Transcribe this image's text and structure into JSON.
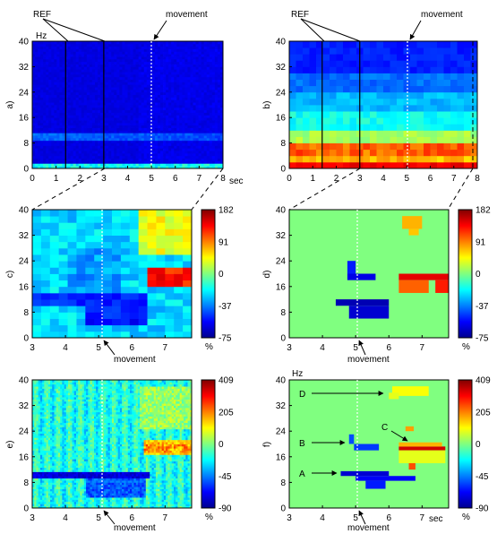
{
  "chart_data": [
    {
      "id": "a",
      "type": "heatmap",
      "panel_label": "a)",
      "unit_label": "Hz",
      "x_unit": "sec",
      "xlim": [
        0,
        8
      ],
      "ylim": [
        0,
        40
      ],
      "x_ticks": [
        "0",
        "1",
        "2",
        "3",
        "4",
        "5",
        "6",
        "7",
        "8"
      ],
      "y_ticks": [
        "0",
        "8",
        "16",
        "24",
        "32",
        "40"
      ],
      "ref_lines_sec": [
        1.4,
        3.0
      ],
      "movement_sec": 5.0,
      "annotations": {
        "ref": "REF",
        "movement": "movement"
      }
    },
    {
      "id": "b",
      "type": "heatmap",
      "panel_label": "b)",
      "xlim": [
        0,
        8
      ],
      "ylim": [
        0,
        40
      ],
      "x_ticks": [
        "0",
        "1",
        "2",
        "3",
        "4",
        "5",
        "6",
        "7",
        "8"
      ],
      "y_ticks": [
        "0",
        "8",
        "16",
        "24",
        "32",
        "40"
      ],
      "ref_lines_sec": [
        1.4,
        3.0
      ],
      "movement_sec": 5.0,
      "annotations": {
        "ref": "REF",
        "movement": "movement"
      }
    },
    {
      "id": "c",
      "type": "heatmap",
      "panel_label": "c)",
      "xlim": [
        3,
        7.8
      ],
      "ylim": [
        0,
        40
      ],
      "x_ticks": [
        "3",
        "4",
        "5",
        "6",
        "7"
      ],
      "y_ticks": [
        "0",
        "8",
        "16",
        "24",
        "32",
        "40"
      ],
      "colorbar": {
        "ticks": [
          "182",
          "91",
          "0",
          "-37",
          "-75"
        ],
        "unit": "%"
      },
      "movement_sec": 5.0,
      "annotations": {
        "movement": "movement"
      }
    },
    {
      "id": "d",
      "type": "heatmap",
      "panel_label": "d)",
      "xlim": [
        3,
        7.8
      ],
      "ylim": [
        0,
        40
      ],
      "x_ticks": [
        "3",
        "4",
        "5",
        "6",
        "7"
      ],
      "y_ticks": [
        "0",
        "8",
        "16",
        "24",
        "32",
        "40"
      ],
      "colorbar": {
        "ticks": [
          "182",
          "91",
          "0",
          "-37",
          "-75"
        ],
        "unit": "%"
      },
      "movement_sec": 5.0,
      "annotations": {
        "movement": "movement"
      }
    },
    {
      "id": "e",
      "type": "heatmap",
      "panel_label": "e)",
      "xlim": [
        3,
        7.8
      ],
      "ylim": [
        0,
        40
      ],
      "x_ticks": [
        "3",
        "4",
        "5",
        "6",
        "7"
      ],
      "y_ticks": [
        "0",
        "8",
        "16",
        "24",
        "32",
        "40"
      ],
      "colorbar": {
        "ticks": [
          "409",
          "205",
          "0",
          "-45",
          "-90"
        ],
        "unit": "%"
      },
      "movement_sec": 5.0,
      "annotations": {
        "movement": "movement"
      }
    },
    {
      "id": "f",
      "type": "heatmap",
      "panel_label": "f)",
      "unit_label": "Hz",
      "x_unit": "sec",
      "xlim": [
        3,
        7.8
      ],
      "ylim": [
        0,
        40
      ],
      "x_ticks": [
        "3",
        "4",
        "5",
        "6",
        "7"
      ],
      "y_ticks": [
        "0",
        "8",
        "16",
        "24",
        "32",
        "40"
      ],
      "colorbar": {
        "ticks": [
          "409",
          "205",
          "0",
          "-45",
          "-90"
        ],
        "unit": "%"
      },
      "movement_sec": 5.0,
      "annotations": {
        "movement": "movement",
        "A": "A",
        "B": "B",
        "C": "C",
        "D": "D"
      }
    }
  ]
}
